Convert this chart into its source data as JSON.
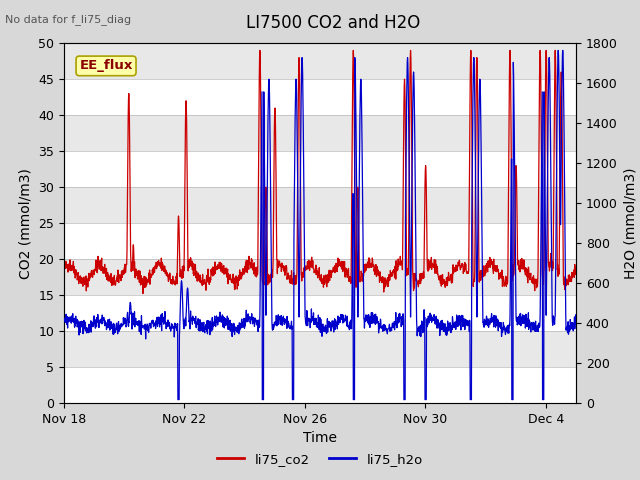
{
  "title": "LI7500 CO2 and H2O",
  "top_left_text": "No data for f_li75_diag",
  "box_label": "EE_flux",
  "xlabel": "Time",
  "ylabel_left": "CO2 (mmol/m3)",
  "ylabel_right": "H2O (mmol/m3)",
  "ylim_left": [
    0,
    50
  ],
  "ylim_right": [
    0,
    1800
  ],
  "yticks_left": [
    0,
    5,
    10,
    15,
    20,
    25,
    30,
    35,
    40,
    45,
    50
  ],
  "yticks_right": [
    0,
    200,
    400,
    600,
    800,
    1000,
    1200,
    1400,
    1600,
    1800
  ],
  "xtick_labels": [
    "Nov 18",
    "Nov 22",
    "Nov 26",
    "Nov 30",
    "Dec 4"
  ],
  "xtick_positions": [
    0,
    4,
    8,
    12,
    16
  ],
  "color_co2": "#cc0000",
  "color_h2o": "#0000cc",
  "legend_labels": [
    "li75_co2",
    "li75_h2o"
  ],
  "fig_bg_color": "#d8d8d8",
  "plot_bg_color": "#d8d8d8",
  "band_light": "#e8e8e8",
  "band_dark": "#c8c8c8",
  "title_fontsize": 12,
  "axis_label_fontsize": 10,
  "tick_fontsize": 9
}
